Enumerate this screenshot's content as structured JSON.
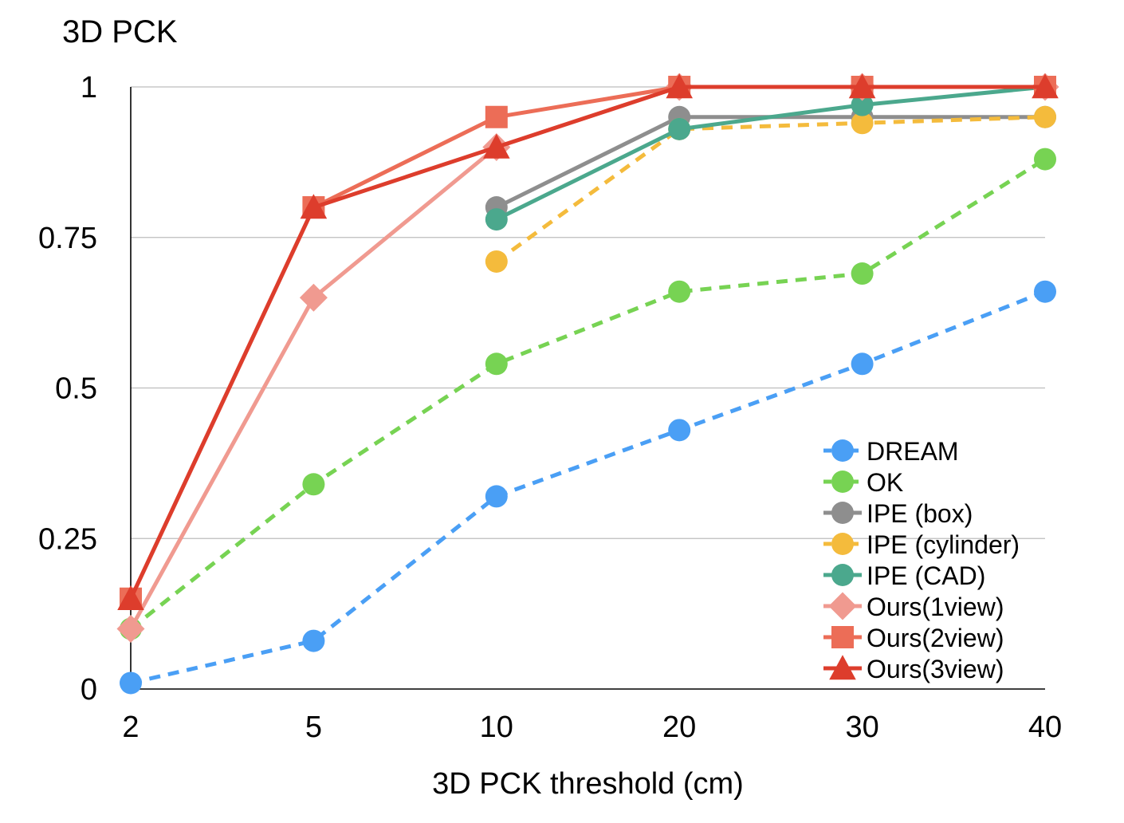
{
  "chart_data": {
    "type": "line",
    "ylabel": "3D PCK",
    "xlabel": "3D PCK threshold (cm)",
    "categories": [
      "2",
      "5",
      "10",
      "20",
      "30",
      "40"
    ],
    "ylim": [
      0,
      1
    ],
    "yticks": [
      "0",
      "0.25",
      "0.5",
      "0.75",
      "1"
    ],
    "grid": true,
    "legend_position": "bottom-right",
    "series": [
      {
        "name": "DREAM",
        "values": [
          0.01,
          0.08,
          0.32,
          0.43,
          0.54,
          0.66
        ],
        "color": "#4a9ff5",
        "marker": "circle",
        "dashed": true
      },
      {
        "name": "OK",
        "values": [
          0.1,
          0.34,
          0.54,
          0.66,
          0.69,
          0.88
        ],
        "color": "#77d353",
        "marker": "circle",
        "dashed": true
      },
      {
        "name": "IPE (box)",
        "values": [
          null,
          null,
          0.8,
          0.95,
          0.95,
          0.95
        ],
        "color": "#8e8e8e",
        "marker": "circle",
        "dashed": false
      },
      {
        "name": "IPE (cylinder)",
        "values": [
          null,
          null,
          0.71,
          0.93,
          0.94,
          0.95
        ],
        "color": "#f4bb3c",
        "marker": "circle",
        "dashed": true
      },
      {
        "name": "IPE (CAD)",
        "values": [
          null,
          null,
          0.78,
          0.93,
          0.97,
          1.0
        ],
        "color": "#4ba88d",
        "marker": "circle",
        "dashed": false
      },
      {
        "name": "Ours(1view)",
        "values": [
          0.1,
          0.65,
          0.9,
          1.0,
          1.0,
          1.0
        ],
        "color": "#f09a90",
        "marker": "diamond",
        "dashed": false
      },
      {
        "name": "Ours(2view)",
        "values": [
          0.15,
          0.8,
          0.95,
          1.0,
          1.0,
          1.0
        ],
        "color": "#ec6d57",
        "marker": "square",
        "dashed": false
      },
      {
        "name": "Ours(3view)",
        "values": [
          0.15,
          0.8,
          0.9,
          1.0,
          1.0,
          1.0
        ],
        "color": "#dd3d2c",
        "marker": "triangle",
        "dashed": false
      }
    ]
  }
}
